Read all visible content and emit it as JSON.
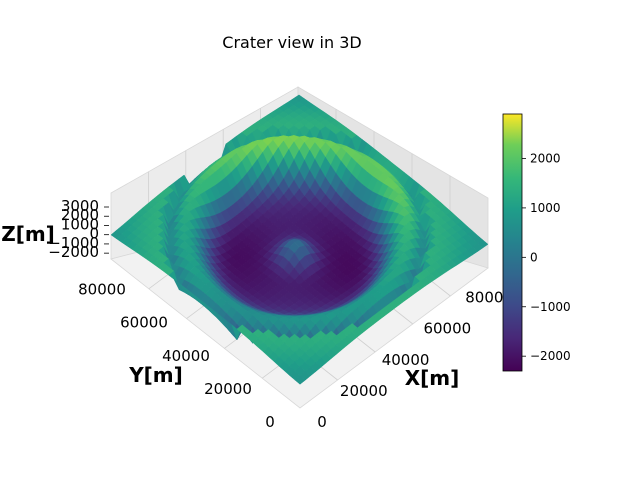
{
  "chart_data": {
    "type": "surface3d",
    "title": "Crater view in 3D",
    "xlabel": "X[m]",
    "ylabel": "Y[m]",
    "zlabel": "Z[m]",
    "xlim": [
      0,
      90000
    ],
    "ylim": [
      0,
      90000
    ],
    "zlim": [
      -2200,
      3000
    ],
    "xticks": [
      "0",
      "20000",
      "40000",
      "60000",
      "80000"
    ],
    "yticks": [
      "0",
      "20000",
      "40000",
      "60000",
      "80000"
    ],
    "zticks": [
      "−2000",
      "−1000",
      "0",
      "1000",
      "2000",
      "3000"
    ],
    "colorbar": {
      "min": -2300,
      "max": 2900,
      "ticks": [
        "−2000",
        "−1000",
        "0",
        "1000",
        "2000"
      ],
      "colormap": "viridis"
    },
    "surface_description": "Crater-shaped terrain: raised rim (~1500-2900 m) surrounding a central depression (~-2200 m) with a small central peak",
    "grid": true
  }
}
